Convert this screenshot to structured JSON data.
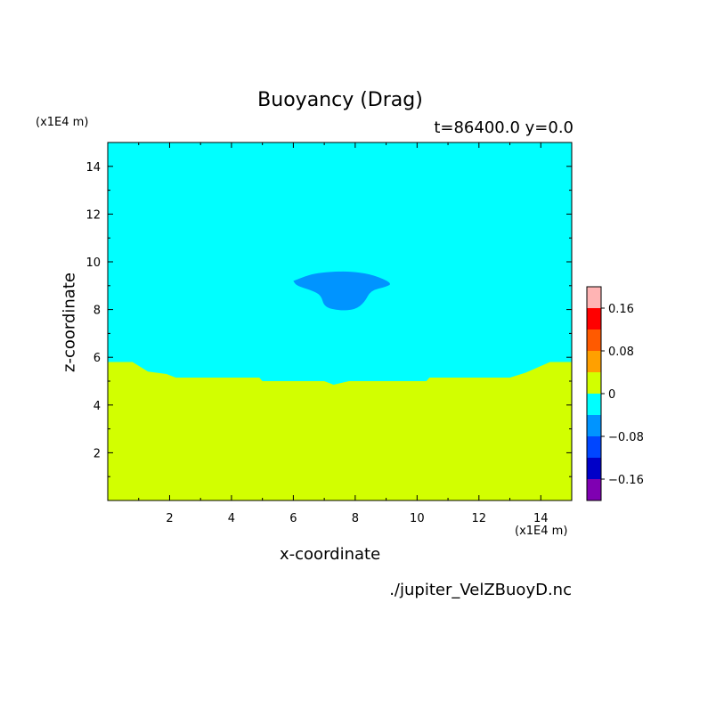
{
  "chart_data": {
    "type": "heatmap",
    "title": "Buoyancy (Drag)",
    "subtitle": "t=86400.0 y=0.0",
    "xlabel": "x-coordinate",
    "ylabel": "z-coordinate",
    "x_unit": "(x1E4 m)",
    "y_unit": "(x1E4 m)",
    "xlim": [
      0.0,
      15.0
    ],
    "ylim": [
      0.0,
      15.0
    ],
    "x_ticks": [
      2,
      4,
      6,
      8,
      10,
      12,
      14
    ],
    "y_ticks": [
      2,
      4,
      6,
      8,
      10,
      12,
      14
    ],
    "grid": false,
    "colorbar": {
      "colors": [
        "#7f00b2",
        "#0000c8",
        "#0046ff",
        "#0094ff",
        "#00ffff",
        "#d2ff00",
        "#ffa000",
        "#ff5a00",
        "#ff0000",
        "#ffb4b4"
      ],
      "tick_values": [
        -0.16,
        -0.08,
        0,
        0.08,
        0.16
      ],
      "tick_labels": [
        "−0.16",
        "−0.08",
        "0",
        "0.08",
        "0.16"
      ]
    },
    "regions": [
      {
        "level": "0 to 0.04",
        "color": "#d2ff00",
        "description": "lower layer below z≈5"
      },
      {
        "level": "-0.04 to 0",
        "color": "#00ffff",
        "description": "upper layer"
      },
      {
        "level": "-0.08 to -0.04",
        "color": "#0094ff",
        "description": "anvil-shaped anomaly near x≈7.6, z≈8–9.5"
      }
    ],
    "interface": {
      "x": [
        0,
        0.8,
        1.3,
        1.9,
        2.2,
        4.9,
        5.0,
        7.0,
        7.3,
        7.8,
        10.3,
        10.4,
        13.0,
        13.5,
        14.3,
        15.0
      ],
      "z": [
        5.8,
        5.8,
        5.4,
        5.3,
        5.15,
        5.15,
        5.0,
        5.0,
        4.85,
        5.0,
        5.0,
        5.15,
        5.15,
        5.35,
        5.8,
        5.8
      ]
    },
    "anomaly_outline": {
      "x": [
        6.0,
        6.5,
        6.9,
        7.5,
        8.0,
        8.6,
        9.2,
        9.0,
        8.5,
        8.3,
        8.0,
        7.5,
        7.0,
        6.9,
        6.6,
        6.1
      ],
      "z": [
        9.2,
        9.45,
        9.55,
        9.6,
        9.58,
        9.45,
        9.1,
        8.95,
        8.8,
        8.3,
        8.0,
        7.95,
        8.1,
        8.6,
        8.8,
        9.0
      ]
    }
  },
  "footer": {
    "filename": "./jupiter_VelZBuoyD.nc"
  }
}
